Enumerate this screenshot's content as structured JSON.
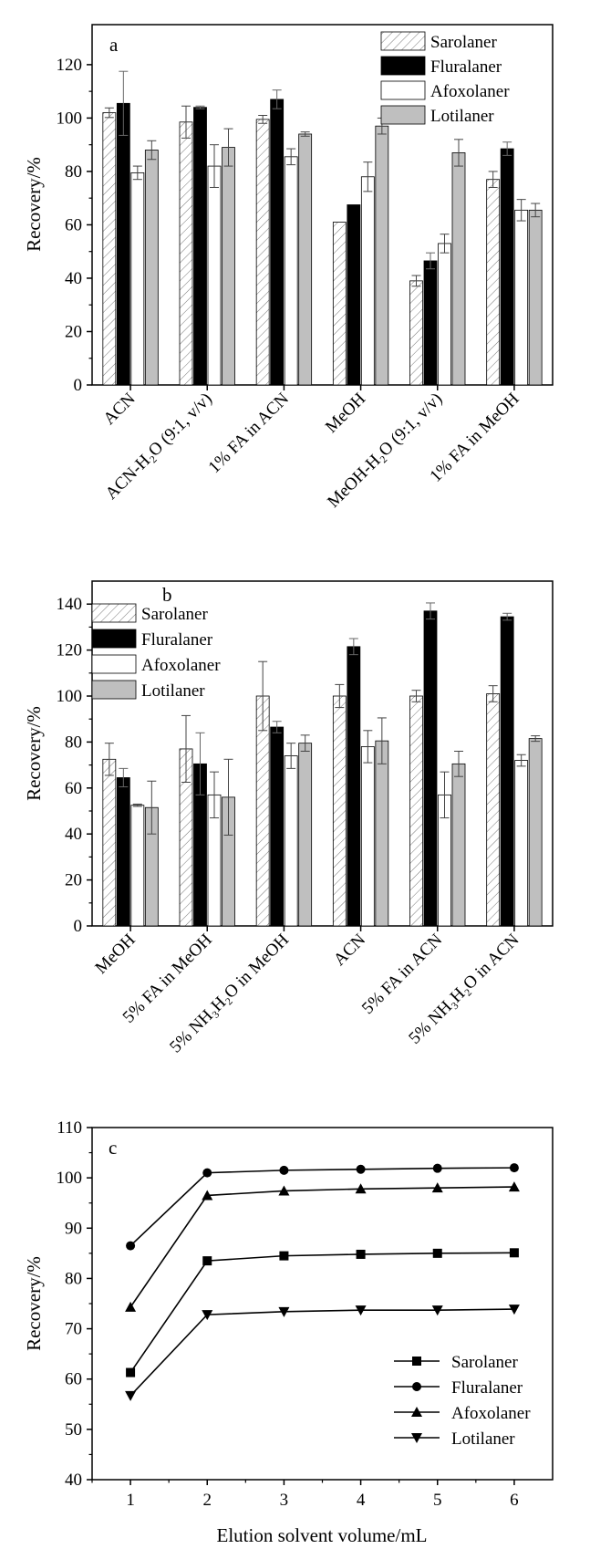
{
  "chart_data": [
    {
      "id": "a",
      "type": "bar",
      "panel_label": "a",
      "ylabel": "Recovery/%",
      "xlabel": "",
      "ylim": [
        0,
        135
      ],
      "yticks": [
        "0",
        "20",
        "40",
        "60",
        "80",
        "100",
        "120"
      ],
      "legend_position": "top-right",
      "categories": [
        "ACN",
        "ACN-H₂O (9:1, v/v)",
        "1% FA in ACN",
        "MeOH",
        "MeOH-H₂O (9:1, v/v)",
        "1% FA in MeOH"
      ],
      "series": [
        {
          "name": "Sarolaner",
          "style": "hatched",
          "values": [
            102,
            98.5,
            99.5,
            61,
            39,
            77
          ],
          "errors": [
            1.8,
            6,
            1.5,
            0,
            2,
            3
          ]
        },
        {
          "name": "Fluralaner",
          "style": "black",
          "values": [
            105.5,
            104,
            107,
            67.5,
            46.5,
            88.5
          ],
          "errors": [
            12,
            0.5,
            3.5,
            0,
            3,
            2.5
          ]
        },
        {
          "name": "Afoxolaner",
          "style": "white",
          "values": [
            79.5,
            82,
            85.5,
            78,
            53,
            65.5
          ],
          "errors": [
            2.5,
            8,
            3,
            5.5,
            3.5,
            4
          ]
        },
        {
          "name": "Lotilaner",
          "style": "gray",
          "values": [
            88,
            89,
            94,
            97,
            87,
            65.5
          ],
          "errors": [
            3.5,
            7,
            0.8,
            3,
            5,
            2.5
          ]
        }
      ]
    },
    {
      "id": "b",
      "type": "bar",
      "panel_label": "b",
      "ylabel": "Recovery/%",
      "xlabel": "",
      "ylim": [
        0,
        150
      ],
      "yticks": [
        "0",
        "20",
        "40",
        "60",
        "80",
        "100",
        "120",
        "140"
      ],
      "legend_position": "top-left",
      "categories": [
        "MeOH",
        "5% FA in MeOH",
        "5% NH₃H₂O in MeOH",
        "ACN",
        "5% FA in ACN",
        "5% NH₃H₂O in ACN"
      ],
      "series": [
        {
          "name": "Sarolaner",
          "style": "hatched",
          "values": [
            72.5,
            77,
            100,
            100,
            100,
            101
          ],
          "errors": [
            7,
            14.5,
            15,
            5,
            2.5,
            3.5
          ]
        },
        {
          "name": "Fluralaner",
          "style": "black",
          "values": [
            64.5,
            70.5,
            86.5,
            121.5,
            137,
            134.5
          ],
          "errors": [
            4,
            13.5,
            2.5,
            3.5,
            3.5,
            1.5
          ]
        },
        {
          "name": "Afoxolaner",
          "style": "white",
          "values": [
            52.5,
            57,
            74,
            78,
            57,
            72
          ],
          "errors": [
            0.5,
            10,
            5.5,
            7,
            10,
            2.5
          ]
        },
        {
          "name": "Lotilaner",
          "style": "gray",
          "values": [
            51.5,
            56,
            79.5,
            80.5,
            70.5,
            81.5
          ],
          "errors": [
            11.5,
            16.5,
            3.5,
            10,
            5.5,
            1.2
          ]
        }
      ]
    },
    {
      "id": "c",
      "type": "line",
      "panel_label": "c",
      "ylabel": "Recovery/%",
      "xlabel": "Elution solvent volume/mL",
      "xlim": [
        0.5,
        6.5
      ],
      "ylim": [
        40,
        110
      ],
      "x": [
        1,
        2,
        3,
        4,
        5,
        6
      ],
      "xticks": [
        "1",
        "2",
        "3",
        "4",
        "5",
        "6"
      ],
      "yticks": [
        "40",
        "50",
        "60",
        "70",
        "80",
        "90",
        "100",
        "110"
      ],
      "legend_position": "bottom-right",
      "series": [
        {
          "name": "Sarolaner",
          "marker": "square",
          "values": [
            61.3,
            83.5,
            84.5,
            84.8,
            85,
            85.1
          ]
        },
        {
          "name": "Fluralaner",
          "marker": "circle",
          "values": [
            86.5,
            101,
            101.5,
            101.7,
            101.9,
            102
          ]
        },
        {
          "name": "Afoxolaner",
          "marker": "triangle-up",
          "values": [
            74.3,
            96.5,
            97.4,
            97.8,
            98,
            98.2
          ]
        },
        {
          "name": "Lotilaner",
          "marker": "triangle-down",
          "values": [
            56.7,
            72.8,
            73.4,
            73.7,
            73.7,
            73.9
          ]
        }
      ]
    }
  ]
}
